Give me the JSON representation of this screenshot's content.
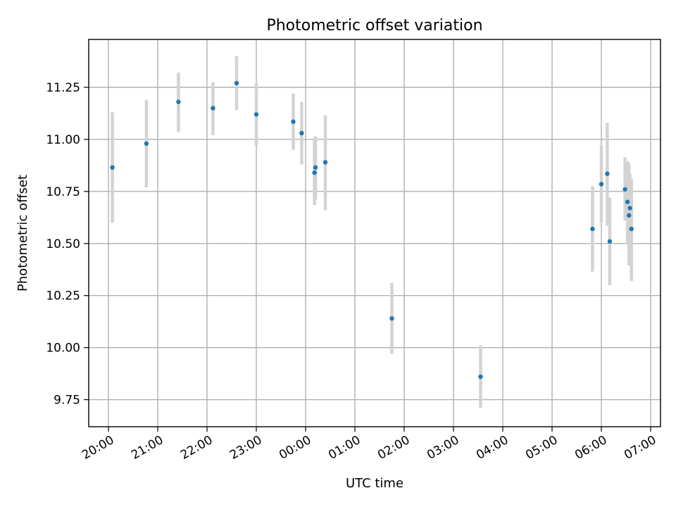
{
  "chart_data": {
    "type": "scatter",
    "title": "Photometric offset variation",
    "xlabel": "UTC time",
    "ylabel": "Photometric offset",
    "x_unit": "UTC hours (continuing past midnight)",
    "xlim": [
      19.6,
      31.2
    ],
    "ylim": [
      9.62,
      11.48
    ],
    "x_ticks": [
      {
        "value": 20,
        "label": "20:00"
      },
      {
        "value": 21,
        "label": "21:00"
      },
      {
        "value": 22,
        "label": "22:00"
      },
      {
        "value": 23,
        "label": "23:00"
      },
      {
        "value": 24,
        "label": "00:00"
      },
      {
        "value": 25,
        "label": "01:00"
      },
      {
        "value": 26,
        "label": "02:00"
      },
      {
        "value": 27,
        "label": "03:00"
      },
      {
        "value": 28,
        "label": "04:00"
      },
      {
        "value": 29,
        "label": "05:00"
      },
      {
        "value": 30,
        "label": "06:00"
      },
      {
        "value": 31,
        "label": "07:00"
      }
    ],
    "y_ticks": [
      {
        "value": 9.75,
        "label": "9.75"
      },
      {
        "value": 10.0,
        "label": "10.00"
      },
      {
        "value": 10.25,
        "label": "10.25"
      },
      {
        "value": 10.5,
        "label": "10.50"
      },
      {
        "value": 10.75,
        "label": "10.75"
      },
      {
        "value": 11.0,
        "label": "11.00"
      },
      {
        "value": 11.25,
        "label": "11.25"
      }
    ],
    "grid": true,
    "colors": {
      "point": "#1f77b4",
      "errorbar": "#d3d3d3",
      "grid": "#b0b0b0"
    },
    "points": [
      {
        "x": 20.08,
        "y": 10.865,
        "lo": 10.6,
        "hi": 11.13
      },
      {
        "x": 20.77,
        "y": 10.98,
        "lo": 10.77,
        "hi": 11.19
      },
      {
        "x": 21.42,
        "y": 11.18,
        "lo": 11.035,
        "hi": 11.32
      },
      {
        "x": 22.12,
        "y": 11.15,
        "lo": 11.02,
        "hi": 11.275
      },
      {
        "x": 22.6,
        "y": 11.27,
        "lo": 11.14,
        "hi": 11.4
      },
      {
        "x": 23.0,
        "y": 11.12,
        "lo": 10.97,
        "hi": 11.27
      },
      {
        "x": 23.75,
        "y": 11.085,
        "lo": 10.95,
        "hi": 11.22
      },
      {
        "x": 23.92,
        "y": 11.03,
        "lo": 10.88,
        "hi": 11.18
      },
      {
        "x": 24.18,
        "y": 10.84,
        "lo": 10.685,
        "hi": 11.0
      },
      {
        "x": 24.2,
        "y": 10.865,
        "lo": 10.71,
        "hi": 11.015
      },
      {
        "x": 24.4,
        "y": 10.89,
        "lo": 10.66,
        "hi": 11.115
      },
      {
        "x": 25.75,
        "y": 10.14,
        "lo": 9.97,
        "hi": 10.31
      },
      {
        "x": 27.55,
        "y": 9.86,
        "lo": 9.71,
        "hi": 10.01
      },
      {
        "x": 29.82,
        "y": 10.57,
        "lo": 10.365,
        "hi": 10.775
      },
      {
        "x": 30.0,
        "y": 10.785,
        "lo": 10.6,
        "hi": 10.97
      },
      {
        "x": 30.12,
        "y": 10.835,
        "lo": 10.585,
        "hi": 11.08
      },
      {
        "x": 30.17,
        "y": 10.51,
        "lo": 10.3,
        "hi": 10.72
      },
      {
        "x": 30.48,
        "y": 10.76,
        "lo": 10.61,
        "hi": 10.915
      },
      {
        "x": 30.53,
        "y": 10.7,
        "lo": 10.505,
        "hi": 10.895
      },
      {
        "x": 30.56,
        "y": 10.635,
        "lo": 10.395,
        "hi": 10.885
      },
      {
        "x": 30.58,
        "y": 10.67,
        "lo": 10.5,
        "hi": 10.835
      },
      {
        "x": 30.61,
        "y": 10.57,
        "lo": 10.32,
        "hi": 10.81
      }
    ]
  }
}
